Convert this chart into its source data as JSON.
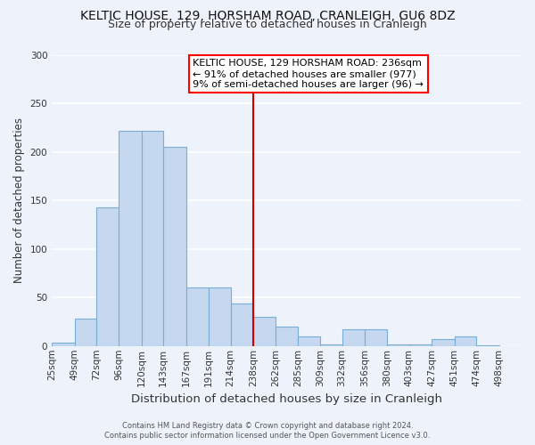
{
  "title": "KELTIC HOUSE, 129, HORSHAM ROAD, CRANLEIGH, GU6 8DZ",
  "subtitle": "Size of property relative to detached houses in Cranleigh",
  "xlabel": "Distribution of detached houses by size in Cranleigh",
  "ylabel": "Number of detached properties",
  "bin_labels": [
    "25sqm",
    "49sqm",
    "72sqm",
    "96sqm",
    "120sqm",
    "143sqm",
    "167sqm",
    "191sqm",
    "214sqm",
    "238sqm",
    "262sqm",
    "285sqm",
    "309sqm",
    "332sqm",
    "356sqm",
    "380sqm",
    "403sqm",
    "427sqm",
    "451sqm",
    "474sqm",
    "498sqm"
  ],
  "bin_edges": [
    25,
    49,
    72,
    96,
    120,
    143,
    167,
    191,
    214,
    238,
    262,
    285,
    309,
    332,
    356,
    380,
    403,
    427,
    451,
    474,
    498
  ],
  "bar_heights": [
    3,
    28,
    143,
    222,
    222,
    205,
    60,
    60,
    44,
    30,
    20,
    10,
    2,
    17,
    17,
    2,
    2,
    7,
    10,
    1,
    0
  ],
  "bar_color": "#c5d8f0",
  "bar_edge_color": "#7aadd4",
  "vline_x": 238,
  "vline_color": "#cc0000",
  "ylim": [
    0,
    300
  ],
  "yticks": [
    0,
    50,
    100,
    150,
    200,
    250,
    300
  ],
  "annotation_title": "KELTIC HOUSE, 129 HORSHAM ROAD: 236sqm",
  "annotation_line1": "← 91% of detached houses are smaller (977)",
  "annotation_line2": "9% of semi-detached houses are larger (96) →",
  "footer_line1": "Contains HM Land Registry data © Crown copyright and database right 2024.",
  "footer_line2": "Contains public sector information licensed under the Open Government Licence v3.0.",
  "bg_color": "#eef2fa",
  "plot_bg_color": "#eef2fa",
  "grid_color": "#ffffff",
  "title_fontsize": 10,
  "subtitle_fontsize": 9,
  "xlabel_fontsize": 9.5,
  "ylabel_fontsize": 8.5,
  "tick_fontsize": 7.5,
  "annotation_fontsize": 8,
  "footer_fontsize": 6
}
